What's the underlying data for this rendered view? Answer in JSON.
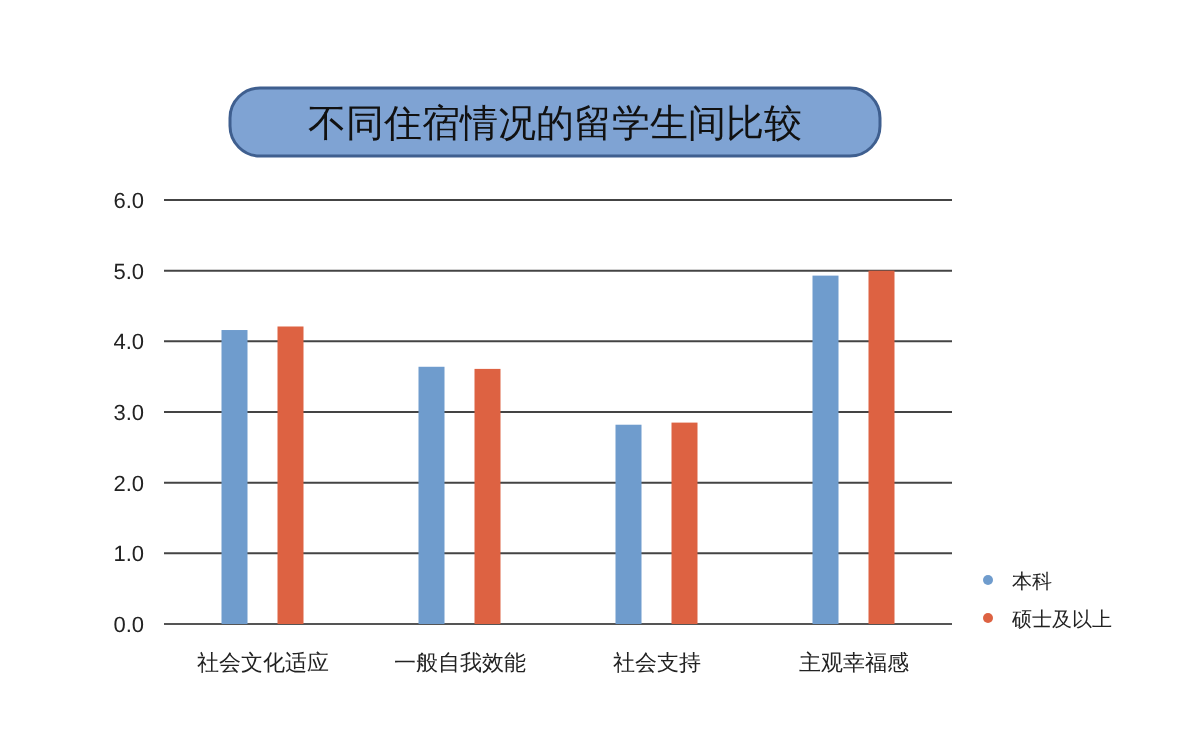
{
  "chart_data": {
    "type": "bar",
    "title": "不同住宿情况的留学生间比较",
    "categories": [
      "社会文化适应",
      "一般自我效能",
      "社会支持",
      "主观幸福感"
    ],
    "series": [
      {
        "name": "本科",
        "color": "#6f9ccd",
        "values": [
          4.16,
          3.64,
          2.82,
          4.93
        ]
      },
      {
        "name": "硕士及以上",
        "color": "#dd6242",
        "values": [
          4.21,
          3.61,
          2.85,
          5.0
        ]
      }
    ],
    "ylim": [
      0,
      6
    ],
    "yticks": [
      {
        "value": 0,
        "label": "0.0"
      },
      {
        "value": 1,
        "label": "1.0"
      },
      {
        "value": 2,
        "label": "2.0"
      },
      {
        "value": 3,
        "label": "3.0"
      },
      {
        "value": 4,
        "label": "4.0"
      },
      {
        "value": 5,
        "label": "5.0"
      },
      {
        "value": 6,
        "label": "6.0"
      }
    ],
    "grid": "y",
    "legend": "right"
  }
}
